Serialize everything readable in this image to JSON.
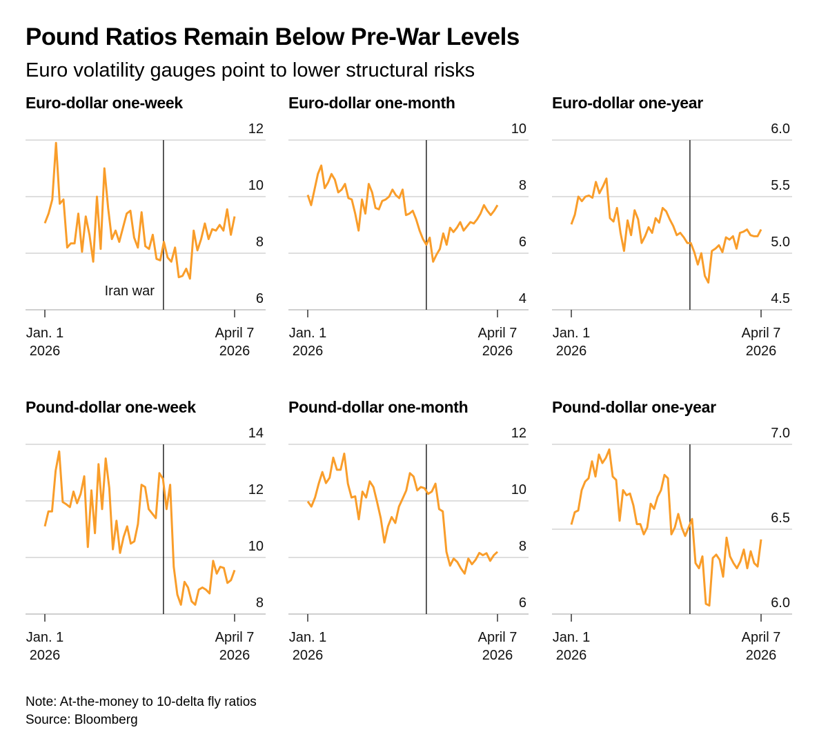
{
  "title": "Pound Ratios Remain Below Pre-War Levels",
  "subtitle": "Euro volatility gauges point to lower structural risks",
  "note": "Note: At-the-money to 10-delta fly ratios",
  "source": "Source: Bloomberg",
  "line_color": "#f99d2a",
  "chart_data": [
    {
      "type": "line",
      "title": "Euro-dollar one-week",
      "x_start": "2026-01-01",
      "x_end": "2026-04-07",
      "xticks": [
        {
          "line1": "Jan. 1",
          "line2": "2026"
        },
        {
          "line1": "April 7",
          "line2": "2026"
        }
      ],
      "ylim": [
        6,
        12
      ],
      "yticks": [
        6,
        8,
        10,
        12
      ],
      "yticklabels": [
        "6",
        "8",
        "10",
        "12"
      ],
      "grid": true,
      "event": {
        "label": "Iran war",
        "date": "2026-03-02"
      },
      "values": [
        9.06,
        9.4,
        9.9,
        11.9,
        9.75,
        9.9,
        8.2,
        8.35,
        8.35,
        9.4,
        8.05,
        9.3,
        8.65,
        7.7,
        10.0,
        8.15,
        11.0,
        9.6,
        8.5,
        8.8,
        8.4,
        8.9,
        9.4,
        9.5,
        8.55,
        8.2,
        9.45,
        8.25,
        8.15,
        8.65,
        7.8,
        7.75,
        8.4,
        7.85,
        7.7,
        8.2,
        7.15,
        7.2,
        7.45,
        7.1,
        8.8,
        8.1,
        8.5,
        9.05,
        8.5,
        8.85,
        8.8,
        9.0,
        8.8,
        9.55,
        8.65,
        9.3
      ]
    },
    {
      "type": "line",
      "title": "Euro-dollar one-month",
      "x_start": "2026-01-01",
      "x_end": "2026-04-07",
      "xticks": [
        {
          "line1": "Jan. 1",
          "line2": "2026"
        },
        {
          "line1": "April 7",
          "line2": "2026"
        }
      ],
      "ylim": [
        4,
        10
      ],
      "yticks": [
        4,
        6,
        8,
        10
      ],
      "yticklabels": [
        "4",
        "6",
        "8",
        "10"
      ],
      "grid": true,
      "event": {
        "label": "",
        "date": "2026-03-02"
      },
      "values": [
        8.06,
        7.7,
        8.25,
        8.8,
        9.1,
        8.3,
        8.5,
        8.8,
        8.6,
        8.15,
        8.25,
        8.45,
        7.95,
        7.9,
        7.4,
        6.8,
        7.9,
        7.4,
        8.45,
        8.15,
        7.6,
        7.55,
        7.85,
        7.9,
        8.0,
        8.25,
        8.05,
        7.95,
        8.25,
        7.35,
        7.4,
        7.5,
        7.2,
        6.8,
        6.5,
        6.3,
        6.55,
        5.7,
        5.95,
        6.15,
        6.7,
        6.3,
        6.9,
        6.75,
        6.9,
        7.1,
        6.8,
        6.95,
        7.1,
        7.05,
        7.2,
        7.4,
        7.7,
        7.5,
        7.35,
        7.5,
        7.7
      ]
    },
    {
      "type": "line",
      "title": "Euro-dollar one-year",
      "x_start": "2026-01-01",
      "x_end": "2026-04-07",
      "xticks": [
        {
          "line1": "Jan. 1",
          "line2": "2026"
        },
        {
          "line1": "April 7",
          "line2": "2026"
        }
      ],
      "ylim": [
        4.5,
        6.0
      ],
      "yticks": [
        4.5,
        5.0,
        5.5,
        6.0
      ],
      "yticklabels": [
        "4.5",
        "5.0",
        "5.5",
        "6.0"
      ],
      "grid": true,
      "event": {
        "label": "",
        "date": "2026-03-02"
      },
      "values": [
        5.255,
        5.34,
        5.5,
        5.46,
        5.5,
        5.51,
        5.49,
        5.63,
        5.53,
        5.59,
        5.66,
        5.31,
        5.28,
        5.4,
        5.18,
        5.02,
        5.29,
        5.16,
        5.38,
        5.3,
        5.09,
        5.15,
        5.23,
        5.18,
        5.31,
        5.27,
        5.4,
        5.37,
        5.3,
        5.24,
        5.16,
        5.18,
        5.14,
        5.09,
        5.09,
        5.01,
        4.9,
        5.0,
        4.8,
        4.74,
        5.02,
        5.04,
        5.07,
        5.01,
        5.14,
        5.12,
        5.15,
        5.04,
        5.18,
        5.19,
        5.21,
        5.16,
        5.15,
        5.15,
        5.21
      ]
    },
    {
      "type": "line",
      "title": "Pound-dollar one-week",
      "x_start": "2026-01-01",
      "x_end": "2026-04-07",
      "xticks": [
        {
          "line1": "Jan. 1",
          "line2": "2026"
        },
        {
          "line1": "April 7",
          "line2": "2026"
        }
      ],
      "ylim": [
        8,
        14
      ],
      "yticks": [
        8,
        10,
        12,
        14
      ],
      "yticklabels": [
        "8",
        "10",
        "12",
        "14"
      ],
      "grid": true,
      "event": {
        "label": "",
        "date": "2026-03-02"
      },
      "values": [
        11.1,
        11.63,
        11.63,
        13.06,
        13.75,
        11.96,
        11.88,
        11.78,
        12.33,
        11.92,
        12.25,
        12.87,
        10.37,
        12.37,
        10.86,
        13.3,
        11.71,
        13.5,
        12.45,
        10.29,
        11.3,
        10.16,
        10.73,
        11.1,
        10.49,
        10.57,
        11.18,
        12.57,
        12.49,
        11.71,
        11.55,
        11.39,
        12.98,
        12.78,
        11.71,
        12.57,
        9.67,
        8.69,
        8.33,
        9.14,
        8.94,
        8.45,
        8.33,
        8.86,
        8.94,
        8.86,
        8.73,
        9.88,
        9.43,
        9.67,
        9.63,
        9.1,
        9.2,
        9.55
      ]
    },
    {
      "type": "line",
      "title": "Pound-dollar one-month",
      "x_start": "2026-01-01",
      "x_end": "2026-04-07",
      "xticks": [
        {
          "line1": "Jan. 1",
          "line2": "2026"
        },
        {
          "line1": "April 7",
          "line2": "2026"
        }
      ],
      "ylim": [
        6,
        12
      ],
      "yticks": [
        6,
        8,
        10,
        12
      ],
      "yticklabels": [
        "6",
        "8",
        "10",
        "12"
      ],
      "grid": true,
      "event": {
        "label": "",
        "date": "2026-03-02"
      },
      "values": [
        9.98,
        9.8,
        10.12,
        10.61,
        11.02,
        10.63,
        10.82,
        11.53,
        11.1,
        11.1,
        11.67,
        10.61,
        10.12,
        10.16,
        9.35,
        10.33,
        10.12,
        10.69,
        10.49,
        9.96,
        9.39,
        8.53,
        9.1,
        9.43,
        9.22,
        9.8,
        10.08,
        10.37,
        10.98,
        10.86,
        10.37,
        10.49,
        10.45,
        10.25,
        10.33,
        10.61,
        9.71,
        9.63,
        8.2,
        7.71,
        7.96,
        7.84,
        7.61,
        7.43,
        7.96,
        7.76,
        7.92,
        8.16,
        8.08,
        8.15,
        7.88,
        8.08,
        8.2
      ]
    },
    {
      "type": "line",
      "title": "Pound-dollar one-year",
      "x_start": "2026-01-01",
      "x_end": "2026-04-07",
      "xticks": [
        {
          "line1": "Jan. 1",
          "line2": "2026"
        },
        {
          "line1": "April 7",
          "line2": "2026"
        }
      ],
      "ylim": [
        6.0,
        7.0
      ],
      "yticks": [
        6.0,
        6.5,
        7.0
      ],
      "yticklabels": [
        "6.0",
        "6.5",
        "7.0"
      ],
      "grid": true,
      "event": {
        "label": "",
        "date": "2026-03-02"
      },
      "values": [
        6.527,
        6.6,
        6.61,
        6.73,
        6.78,
        6.8,
        6.9,
        6.81,
        6.94,
        6.89,
        6.92,
        6.97,
        6.81,
        6.79,
        6.55,
        6.73,
        6.7,
        6.71,
        6.64,
        6.53,
        6.53,
        6.47,
        6.51,
        6.65,
        6.62,
        6.69,
        6.73,
        6.82,
        6.8,
        6.47,
        6.51,
        6.59,
        6.51,
        6.46,
        6.51,
        6.56,
        6.3,
        6.27,
        6.34,
        6.06,
        6.05,
        6.33,
        6.35,
        6.32,
        6.22,
        6.45,
        6.34,
        6.3,
        6.27,
        6.31,
        6.38,
        6.27,
        6.37,
        6.3,
        6.28,
        6.44
      ]
    }
  ]
}
